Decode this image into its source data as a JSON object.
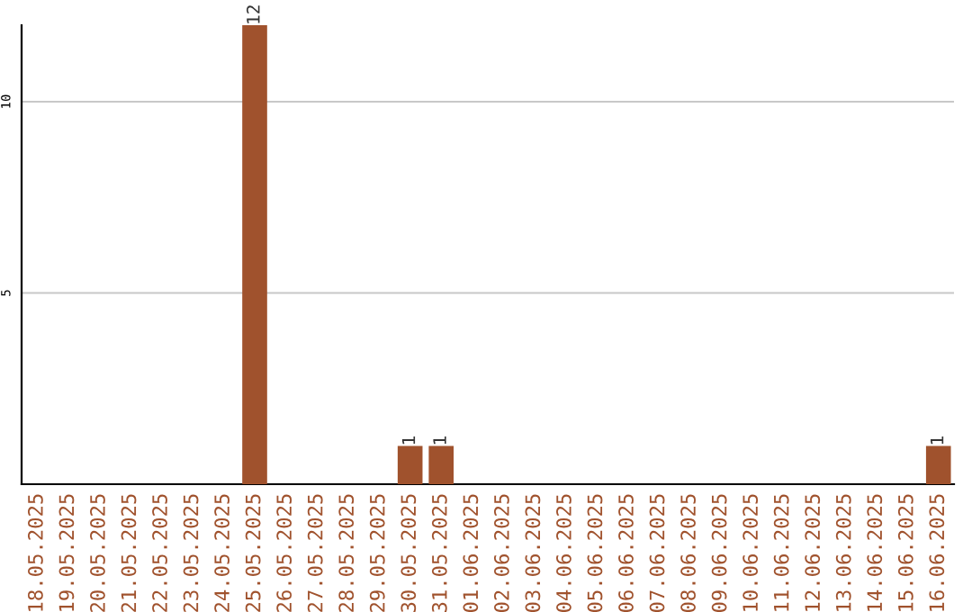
{
  "chart_data": {
    "type": "bar",
    "categories": [
      "18.05.2025",
      "19.05.2025",
      "20.05.2025",
      "21.05.2025",
      "22.05.2025",
      "23.05.2025",
      "24.05.2025",
      "25.05.2025",
      "26.05.2025",
      "27.05.2025",
      "28.05.2025",
      "29.05.2025",
      "30.05.2025",
      "31.05.2025",
      "01.06.2025",
      "02.06.2025",
      "03.06.2025",
      "04.06.2025",
      "05.06.2025",
      "06.06.2025",
      "07.06.2025",
      "08.06.2025",
      "09.06.2025",
      "10.06.2025",
      "11.06.2025",
      "12.06.2025",
      "13.06.2025",
      "14.06.2025",
      "15.06.2025",
      "16.06.2025"
    ],
    "values": [
      0,
      0,
      0,
      0,
      0,
      0,
      0,
      12,
      0,
      0,
      0,
      0,
      1,
      1,
      0,
      0,
      0,
      0,
      0,
      0,
      0,
      0,
      0,
      0,
      0,
      0,
      0,
      0,
      0,
      1
    ],
    "value_labels": [
      null,
      null,
      null,
      null,
      null,
      null,
      null,
      "12",
      null,
      null,
      null,
      null,
      "1",
      "1",
      null,
      null,
      null,
      null,
      null,
      null,
      null,
      null,
      null,
      null,
      null,
      null,
      null,
      null,
      null,
      "1"
    ],
    "color": "#a0522d",
    "ylim": [
      0,
      12
    ],
    "yticks": [
      5,
      10
    ],
    "grid": "y",
    "legend": false
  }
}
